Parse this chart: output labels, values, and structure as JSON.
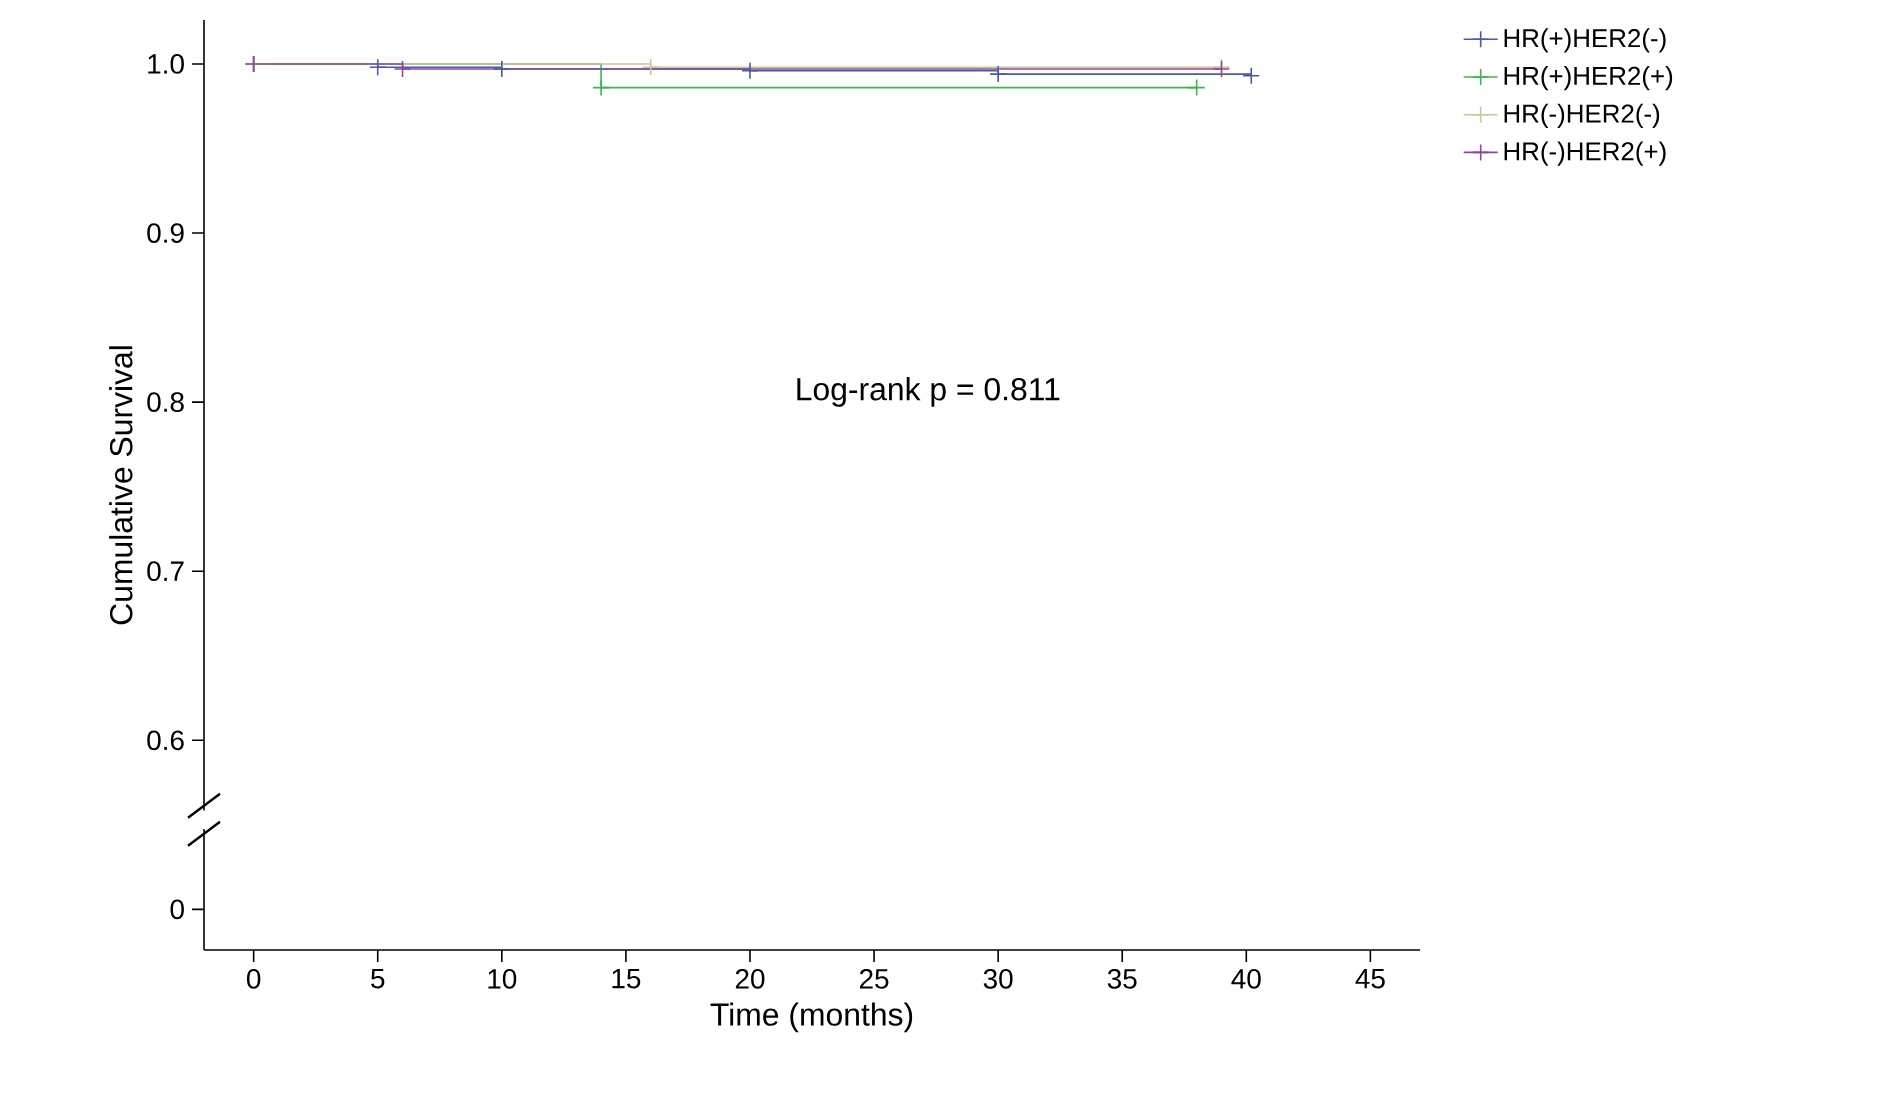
{
  "chart_data": {
    "type": "step",
    "xlabel": "Time (months)",
    "ylabel": "Cumulative Survival",
    "xlim": [
      -2,
      47
    ],
    "xticks": [
      0,
      5,
      10,
      15,
      20,
      25,
      30,
      35,
      40,
      45
    ],
    "ylim": [
      0.476,
      1.026
    ],
    "yticks": [
      {
        "value": 0.5,
        "label": "0"
      },
      0.6,
      0.7,
      0.8,
      0.9,
      {
        "value": 1.0,
        "label": "1.0"
      }
    ],
    "legend": "top right",
    "marker": "cross",
    "line_style": "solid",
    "grid": false,
    "annotations": [
      "Log-rank p = 0.811"
    ],
    "series": [
      {
        "name": "HR(+)HER2(-)",
        "color": "#4a5aa8",
        "x": [
          0,
          5,
          10,
          20,
          30,
          40.2
        ],
        "values": [
          1.0,
          0.998,
          0.997,
          0.996,
          0.994,
          0.993
        ]
      },
      {
        "name": "HR(+)HER2(+)",
        "color": "#3cb84a",
        "x": [
          0,
          14,
          38
        ],
        "values": [
          1.0,
          0.986,
          0.986
        ]
      },
      {
        "name": "HR(-)HER2(-)",
        "color": "#c8c89a",
        "x": [
          0,
          16,
          39
        ],
        "values": [
          1.0,
          0.998,
          0.998
        ]
      },
      {
        "name": "HR(-)HER2(+)",
        "color": "#8a4a9a",
        "x": [
          0,
          6,
          39
        ],
        "values": [
          1.0,
          0.997,
          0.997
        ]
      }
    ]
  }
}
